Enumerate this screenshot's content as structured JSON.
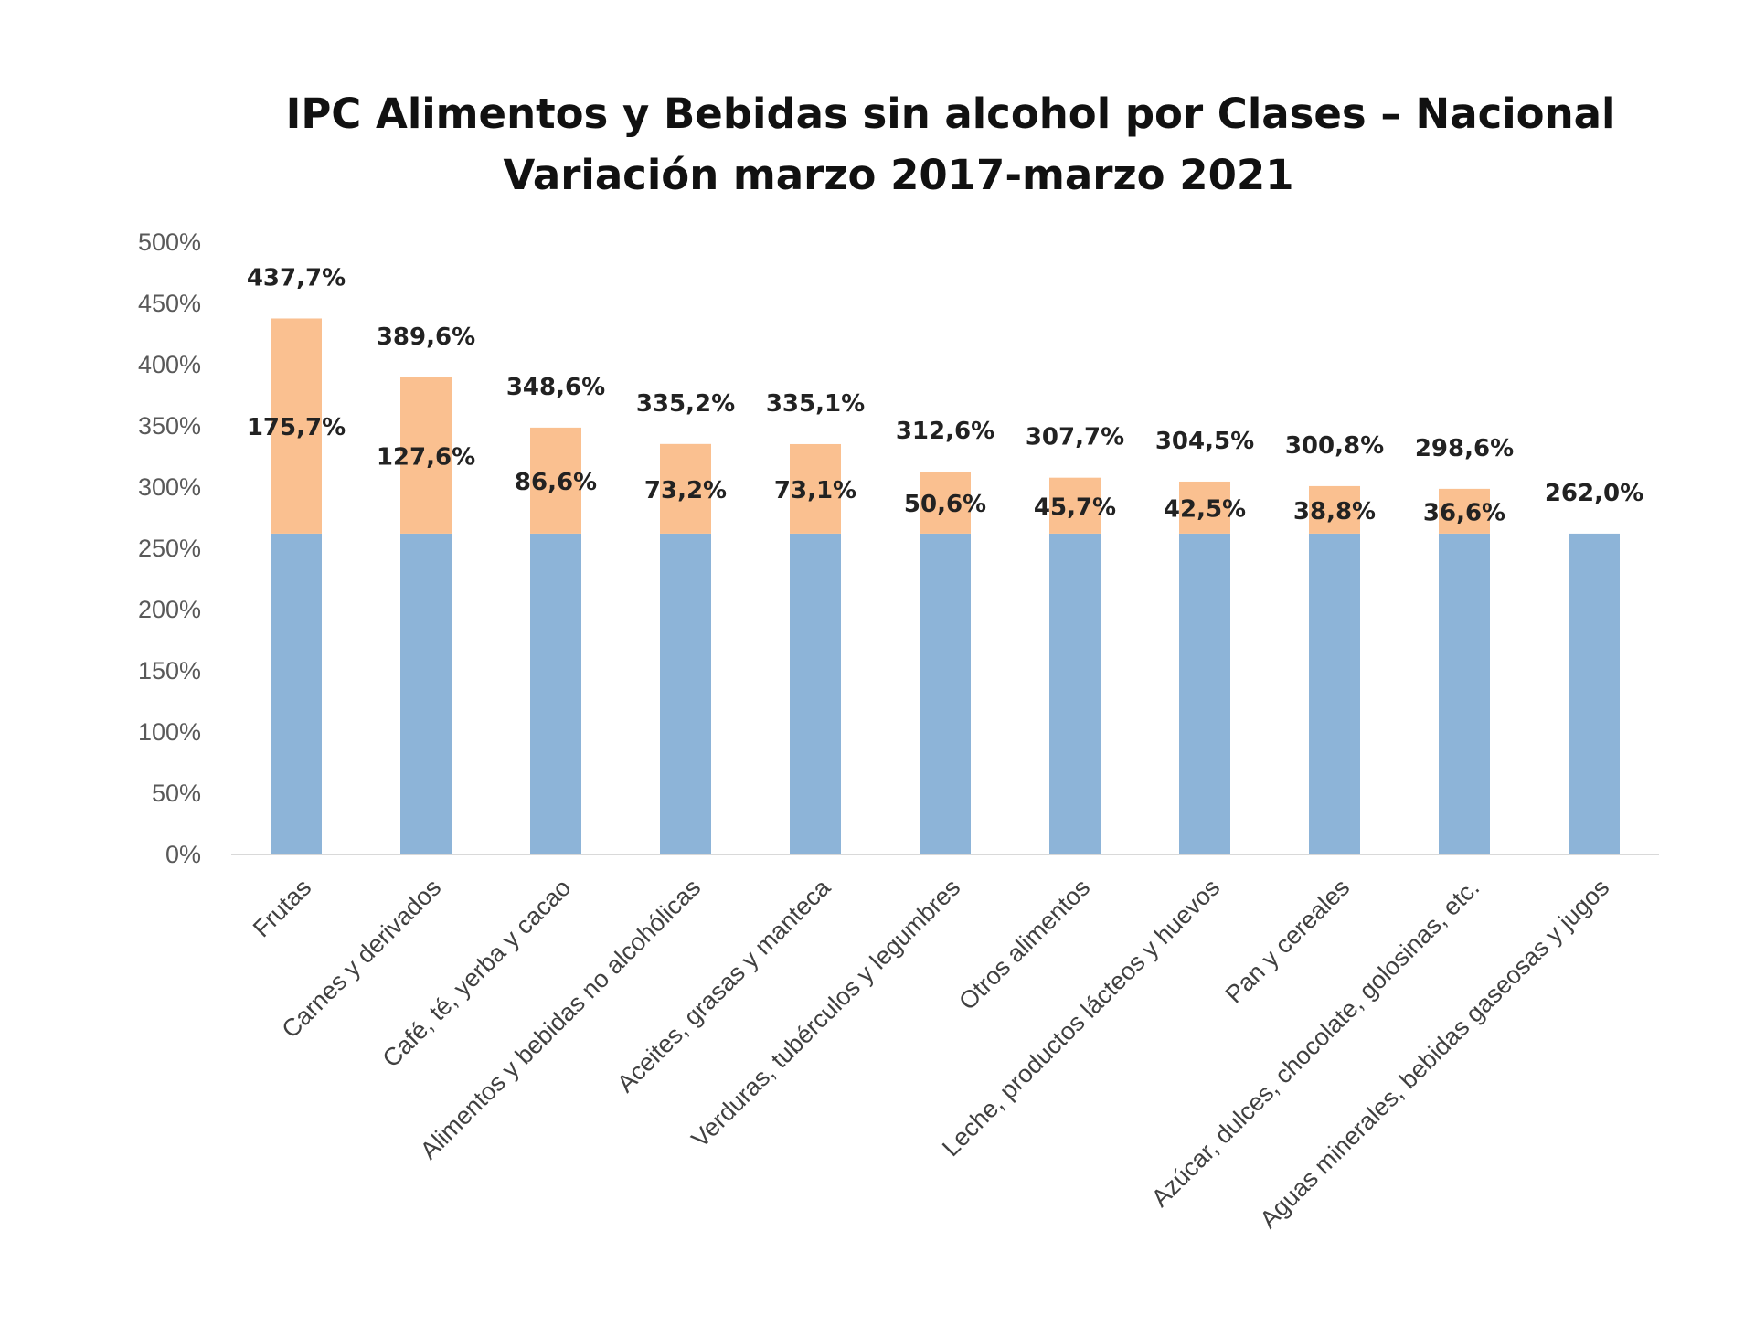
{
  "chart_data": {
    "type": "bar",
    "stacked": true,
    "title": "IPC Alimentos y Bebidas sin alcohol por Clases – Nacional",
    "subtitle": "Variación marzo 2017-marzo 2021",
    "xlabel": "",
    "ylabel": "",
    "ylim": [
      0,
      500
    ],
    "yticks": [
      "0%",
      "50%",
      "100%",
      "150%",
      "200%",
      "250%",
      "300%",
      "350%",
      "400%",
      "450%",
      "500%"
    ],
    "grid": false,
    "legend": "none",
    "categories": [
      "Frutas",
      "Carnes y derivados",
      "Café, té, yerba y cacao",
      "Alimentos y bebidas no alcohólicas",
      "Aceites, grasas y manteca",
      "Verduras, tubérculos y legumbres",
      "Otros alimentos",
      "Leche, productos lácteos y huevos",
      "Pan y cereales",
      "Azúcar, dulces, chocolate, golosinas, etc.",
      "Aguas minerales, bebidas gaseosas y jugos"
    ],
    "series": [
      {
        "color": "#8db4d8",
        "values": [
          262.0,
          262.0,
          262.0,
          262.0,
          262.0,
          262.0,
          262.0,
          262.0,
          262.0,
          262.0,
          262.0
        ]
      },
      {
        "color": "#fac090",
        "values": [
          175.7,
          127.6,
          86.6,
          73.2,
          73.1,
          50.6,
          45.7,
          42.5,
          38.8,
          36.6,
          0
        ]
      }
    ],
    "totals": [
      437.7,
      389.6,
      348.6,
      335.2,
      335.1,
      312.6,
      307.7,
      304.5,
      300.8,
      298.6,
      262.0
    ],
    "total_labels": [
      "437,7%",
      "389,6%",
      "348,6%",
      "335,2%",
      "335,1%",
      "312,6%",
      "307,7%",
      "304,5%",
      "300,8%",
      "298,6%",
      "262,0%"
    ],
    "difference_labels": [
      "175,7%",
      "127,6%",
      "86,6%",
      "73,2%",
      "73,1%",
      "50,6%",
      "45,7%",
      "42,5%",
      "38,8%",
      "36,6%",
      ""
    ]
  }
}
